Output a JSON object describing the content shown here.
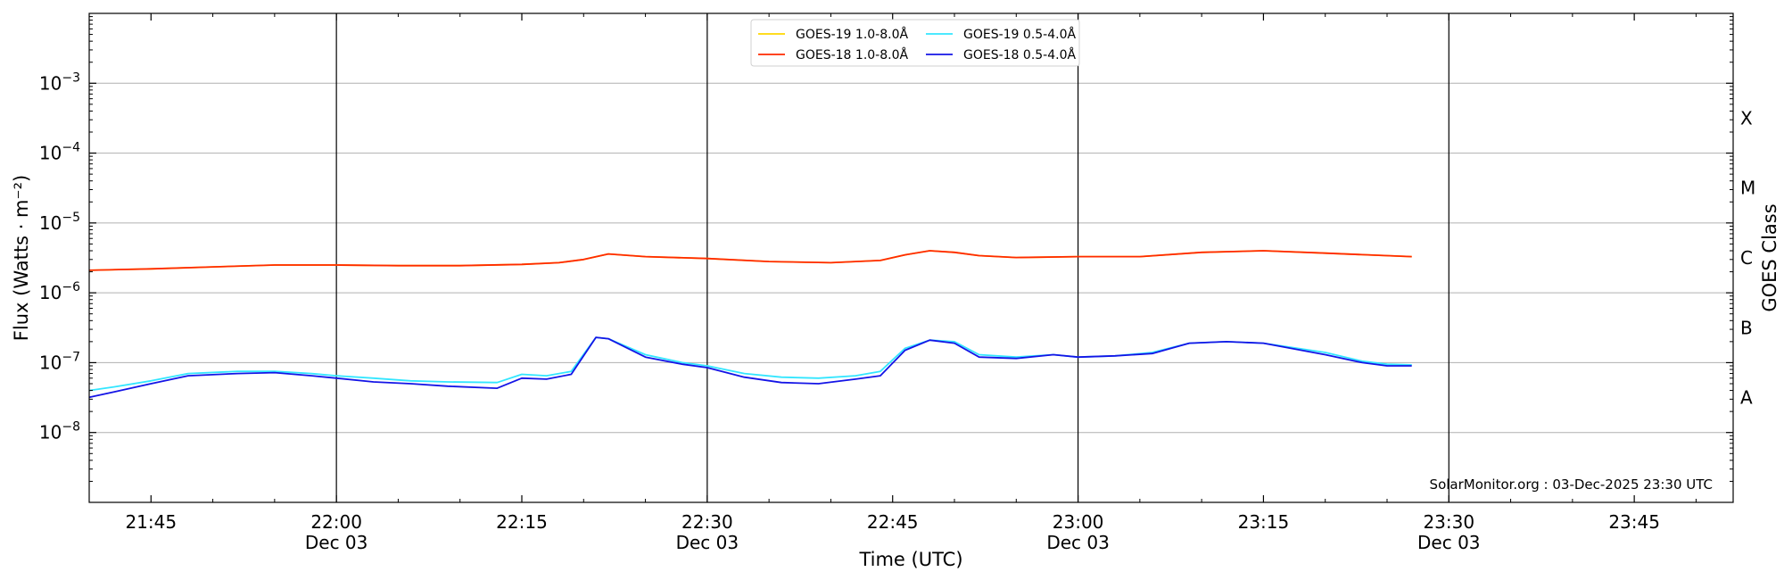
{
  "chart_data": {
    "type": "line",
    "title": "",
    "xlabel": "Time (UTC)",
    "ylabel": "Flux (Watts · m⁻²)",
    "y2label": "GOES Class",
    "yscale": "log",
    "ylim": [
      1e-09,
      0.01
    ],
    "xlim": [
      "21:40",
      "23:53"
    ],
    "x_ticks": [
      {
        "time": "21:45",
        "label": "21:45",
        "sublabel": ""
      },
      {
        "time": "22:00",
        "label": "22:00",
        "sublabel": "Dec 03"
      },
      {
        "time": "22:15",
        "label": "22:15",
        "sublabel": ""
      },
      {
        "time": "22:30",
        "label": "22:30",
        "sublabel": "Dec 03"
      },
      {
        "time": "22:45",
        "label": "22:45",
        "sublabel": ""
      },
      {
        "time": "23:00",
        "label": "23:00",
        "sublabel": "Dec 03"
      },
      {
        "time": "23:15",
        "label": "23:15",
        "sublabel": ""
      },
      {
        "time": "23:30",
        "label": "23:30",
        "sublabel": "Dec 03"
      },
      {
        "time": "23:45",
        "label": "23:45",
        "sublabel": ""
      }
    ],
    "y_ticks": [
      {
        "value": 1e-08,
        "base": "10",
        "exp": "−8"
      },
      {
        "value": 1e-07,
        "base": "10",
        "exp": "−7"
      },
      {
        "value": 1e-06,
        "base": "10",
        "exp": "−6"
      },
      {
        "value": 1e-05,
        "base": "10",
        "exp": "−5"
      },
      {
        "value": 0.0001,
        "base": "10",
        "exp": "−4"
      },
      {
        "value": 0.001,
        "base": "10",
        "exp": "−3"
      }
    ],
    "vertical_lines": [
      "22:00",
      "22:30",
      "23:00",
      "23:30"
    ],
    "grid": "horizontal",
    "goes_classes": [
      {
        "label": "A",
        "value": 3.16e-08
      },
      {
        "label": "B",
        "value": 3.16e-07
      },
      {
        "label": "C",
        "value": 3.16e-06
      },
      {
        "label": "M",
        "value": 3.16e-05
      },
      {
        "label": "X",
        "value": 0.000316
      }
    ],
    "legend_position": "top-center",
    "credit": "SolarMonitor.org : 03-Dec-2025 23:30 UTC",
    "series": [
      {
        "name": "GOES-19 1.0-8.0Å",
        "color": "#ffd700",
        "x": [
          "21:40",
          "21:45",
          "21:50",
          "21:55",
          "22:00",
          "22:05",
          "22:10",
          "22:15",
          "22:18",
          "22:20",
          "22:22",
          "22:25",
          "22:30",
          "22:35",
          "22:40",
          "22:44",
          "22:46",
          "22:48",
          "22:50",
          "22:52",
          "22:55",
          "23:00",
          "23:05",
          "23:10",
          "23:15",
          "23:20",
          "23:25",
          "23:27"
        ],
        "y": [
          2.1e-06,
          2.2e-06,
          2.35e-06,
          2.5e-06,
          2.5e-06,
          2.45e-06,
          2.45e-06,
          2.55e-06,
          2.7e-06,
          3e-06,
          3.6e-06,
          3.3e-06,
          3.1e-06,
          2.8e-06,
          2.7e-06,
          2.9e-06,
          3.5e-06,
          4e-06,
          3.8e-06,
          3.4e-06,
          3.2e-06,
          3.3e-06,
          3.3e-06,
          3.8e-06,
          4e-06,
          3.7e-06,
          3.4e-06,
          3.3e-06
        ]
      },
      {
        "name": "GOES-18 1.0-8.0Å",
        "color": "#ff2a00",
        "x": [
          "21:40",
          "21:45",
          "21:50",
          "21:55",
          "22:00",
          "22:05",
          "22:10",
          "22:15",
          "22:18",
          "22:20",
          "22:22",
          "22:25",
          "22:30",
          "22:35",
          "22:40",
          "22:44",
          "22:46",
          "22:48",
          "22:50",
          "22:52",
          "22:55",
          "23:00",
          "23:05",
          "23:10",
          "23:15",
          "23:20",
          "23:25",
          "23:27"
        ],
        "y": [
          2.1e-06,
          2.2e-06,
          2.35e-06,
          2.5e-06,
          2.5e-06,
          2.45e-06,
          2.45e-06,
          2.55e-06,
          2.7e-06,
          3e-06,
          3.6e-06,
          3.3e-06,
          3.1e-06,
          2.8e-06,
          2.7e-06,
          2.9e-06,
          3.5e-06,
          4e-06,
          3.8e-06,
          3.4e-06,
          3.2e-06,
          3.3e-06,
          3.3e-06,
          3.8e-06,
          4e-06,
          3.7e-06,
          3.4e-06,
          3.3e-06
        ]
      },
      {
        "name": "GOES-19 0.5-4.0Å",
        "color": "#33e6ff",
        "x": [
          "21:40",
          "21:42",
          "21:45",
          "21:48",
          "21:52",
          "21:55",
          "21:58",
          "22:00",
          "22:03",
          "22:06",
          "22:09",
          "22:13",
          "22:15",
          "22:17",
          "22:19",
          "22:21",
          "22:22",
          "22:25",
          "22:28",
          "22:30",
          "22:33",
          "22:36",
          "22:39",
          "22:42",
          "22:44",
          "22:46",
          "22:48",
          "22:50",
          "22:52",
          "22:55",
          "22:58",
          "23:00",
          "23:03",
          "23:06",
          "23:09",
          "23:12",
          "23:15",
          "23:20",
          "23:23",
          "23:25",
          "23:27"
        ],
        "y": [
          4e-08,
          4.5e-08,
          5.5e-08,
          7e-08,
          7.5e-08,
          7.5e-08,
          7e-08,
          6.5e-08,
          6e-08,
          5.5e-08,
          5.3e-08,
          5.2e-08,
          6.8e-08,
          6.5e-08,
          7.5e-08,
          2.3e-07,
          2.2e-07,
          1.3e-07,
          1e-07,
          9e-08,
          7e-08,
          6.2e-08,
          6e-08,
          6.5e-08,
          7.5e-08,
          1.6e-07,
          2.1e-07,
          2e-07,
          1.3e-07,
          1.2e-07,
          1.3e-07,
          1.2e-07,
          1.25e-07,
          1.4e-07,
          1.9e-07,
          2e-07,
          1.9e-07,
          1.4e-07,
          1.05e-07,
          9.5e-08,
          9.3e-08
        ]
      },
      {
        "name": "GOES-18 0.5-4.0Å",
        "color": "#1414e6",
        "x": [
          "21:40",
          "21:42",
          "21:45",
          "21:48",
          "21:52",
          "21:55",
          "21:58",
          "22:00",
          "22:03",
          "22:06",
          "22:09",
          "22:13",
          "22:15",
          "22:17",
          "22:19",
          "22:21",
          "22:22",
          "22:25",
          "22:28",
          "22:30",
          "22:33",
          "22:36",
          "22:39",
          "22:42",
          "22:44",
          "22:46",
          "22:48",
          "22:50",
          "22:52",
          "22:55",
          "22:58",
          "23:00",
          "23:03",
          "23:06",
          "23:09",
          "23:12",
          "23:15",
          "23:20",
          "23:23",
          "23:25",
          "23:27"
        ],
        "y": [
          3.2e-08,
          3.8e-08,
          5e-08,
          6.5e-08,
          7e-08,
          7.2e-08,
          6.5e-08,
          6e-08,
          5.3e-08,
          5e-08,
          4.6e-08,
          4.3e-08,
          6e-08,
          5.8e-08,
          6.8e-08,
          2.3e-07,
          2.2e-07,
          1.2e-07,
          9.5e-08,
          8.5e-08,
          6.2e-08,
          5.2e-08,
          5e-08,
          5.8e-08,
          6.5e-08,
          1.5e-07,
          2.1e-07,
          1.9e-07,
          1.2e-07,
          1.15e-07,
          1.3e-07,
          1.2e-07,
          1.25e-07,
          1.35e-07,
          1.9e-07,
          2e-07,
          1.9e-07,
          1.3e-07,
          1e-07,
          9e-08,
          9e-08
        ]
      }
    ]
  }
}
